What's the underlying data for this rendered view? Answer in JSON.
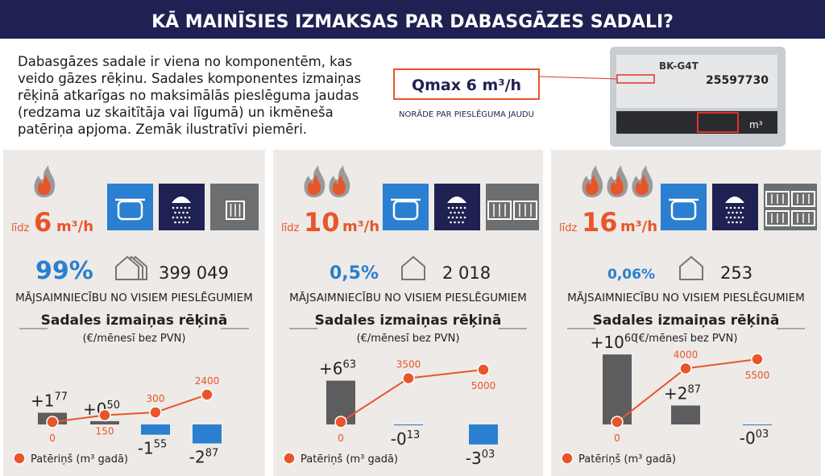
{
  "header": {
    "title": "KĀ MAINĪSIES IZMAKSAS PAR DABASGĀZES SADALI?"
  },
  "intro": {
    "lines": [
      "Dabasgāzes sadale ir viena no komponentēm, kas",
      "veido gāzes rēķinu. Sadales komponentes izmaiņas",
      "rēķinā atkarīgas no maksimālās pieslēguma jaudas",
      "(redzama uz skaitītāja vai līgumā) un ikmēneša",
      "patēriņa apjoma. Zemāk ilustratīvi piemēri."
    ]
  },
  "meter": {
    "callout": "Qmax 6 m³/h",
    "caption": "NORĀDE PAR PIESLĒGUMA JAUDU",
    "model": "BK-G4T",
    "serial": "25597730",
    "unit": "m³"
  },
  "panels": [
    {
      "flames": 1,
      "prefix": "līdz",
      "capacity": 6,
      "unit": "m³/h",
      "share": "99%",
      "households": "399 049",
      "label": "MĀJSAIMNIECĪBU NO VISIEM PIESLĒGUMIEM",
      "chart": {
        "title": "Sadales izmaiņas rēķinā",
        "subtitle": "(€/mēnesī bez PVN)",
        "ylim": [
          -4,
          12
        ],
        "values": [
          1.77,
          0.5,
          -1.55,
          -2.87
        ],
        "value_labels": [
          {
            "int": "+1",
            "dec": "77"
          },
          {
            "int": "+0",
            "dec": "50"
          },
          {
            "int": "-1",
            "dec": "55"
          },
          {
            "int": "-2",
            "dec": "87"
          }
        ],
        "consumption": [
          0,
          150,
          300,
          2400
        ],
        "legend": "Patēriņš (m³ gadā)"
      }
    },
    {
      "flames": 2,
      "prefix": "līdz",
      "capacity": 10,
      "unit": "m³/h",
      "share": "0,5%",
      "households": "2 018",
      "label": "MĀJSAIMNIECĪBU NO VISIEM PIESLĒGUMIEM",
      "chart": {
        "title": "Sadales izmaiņas rēķinā",
        "subtitle": "(€/mēnesī bez PVN)",
        "ylim": [
          -4,
          12
        ],
        "values": [
          6.63,
          -0.13,
          -3.03
        ],
        "value_labels": [
          {
            "int": "+6",
            "dec": "63"
          },
          {
            "int": "-0",
            "dec": "13"
          },
          {
            "int": "-3",
            "dec": "03"
          }
        ],
        "consumption": [
          0,
          3500,
          5000
        ],
        "legend": "Patēriņš (m³ gadā)"
      }
    },
    {
      "flames": 3,
      "prefix": "līdz",
      "capacity": 16,
      "unit": "m³/h",
      "share": "0,06%",
      "households": "253",
      "label": "MĀJSAIMNIECĪBU NO VISIEM PIESLĒGUMIEM",
      "chart": {
        "title": "Sadales izmaiņas rēķinā",
        "subtitle": "(€/mēnesī bez PVN)",
        "ylim": [
          -4,
          12
        ],
        "values": [
          10.6,
          2.87,
          -0.03
        ],
        "value_labels": [
          {
            "int": "+10",
            "dec": "60"
          },
          {
            "int": "+2",
            "dec": "87"
          },
          {
            "int": "-0",
            "dec": "03"
          }
        ],
        "consumption": [
          0,
          4000,
          5500
        ],
        "legend": "Patēriņš (m³ gadā)"
      }
    }
  ]
}
